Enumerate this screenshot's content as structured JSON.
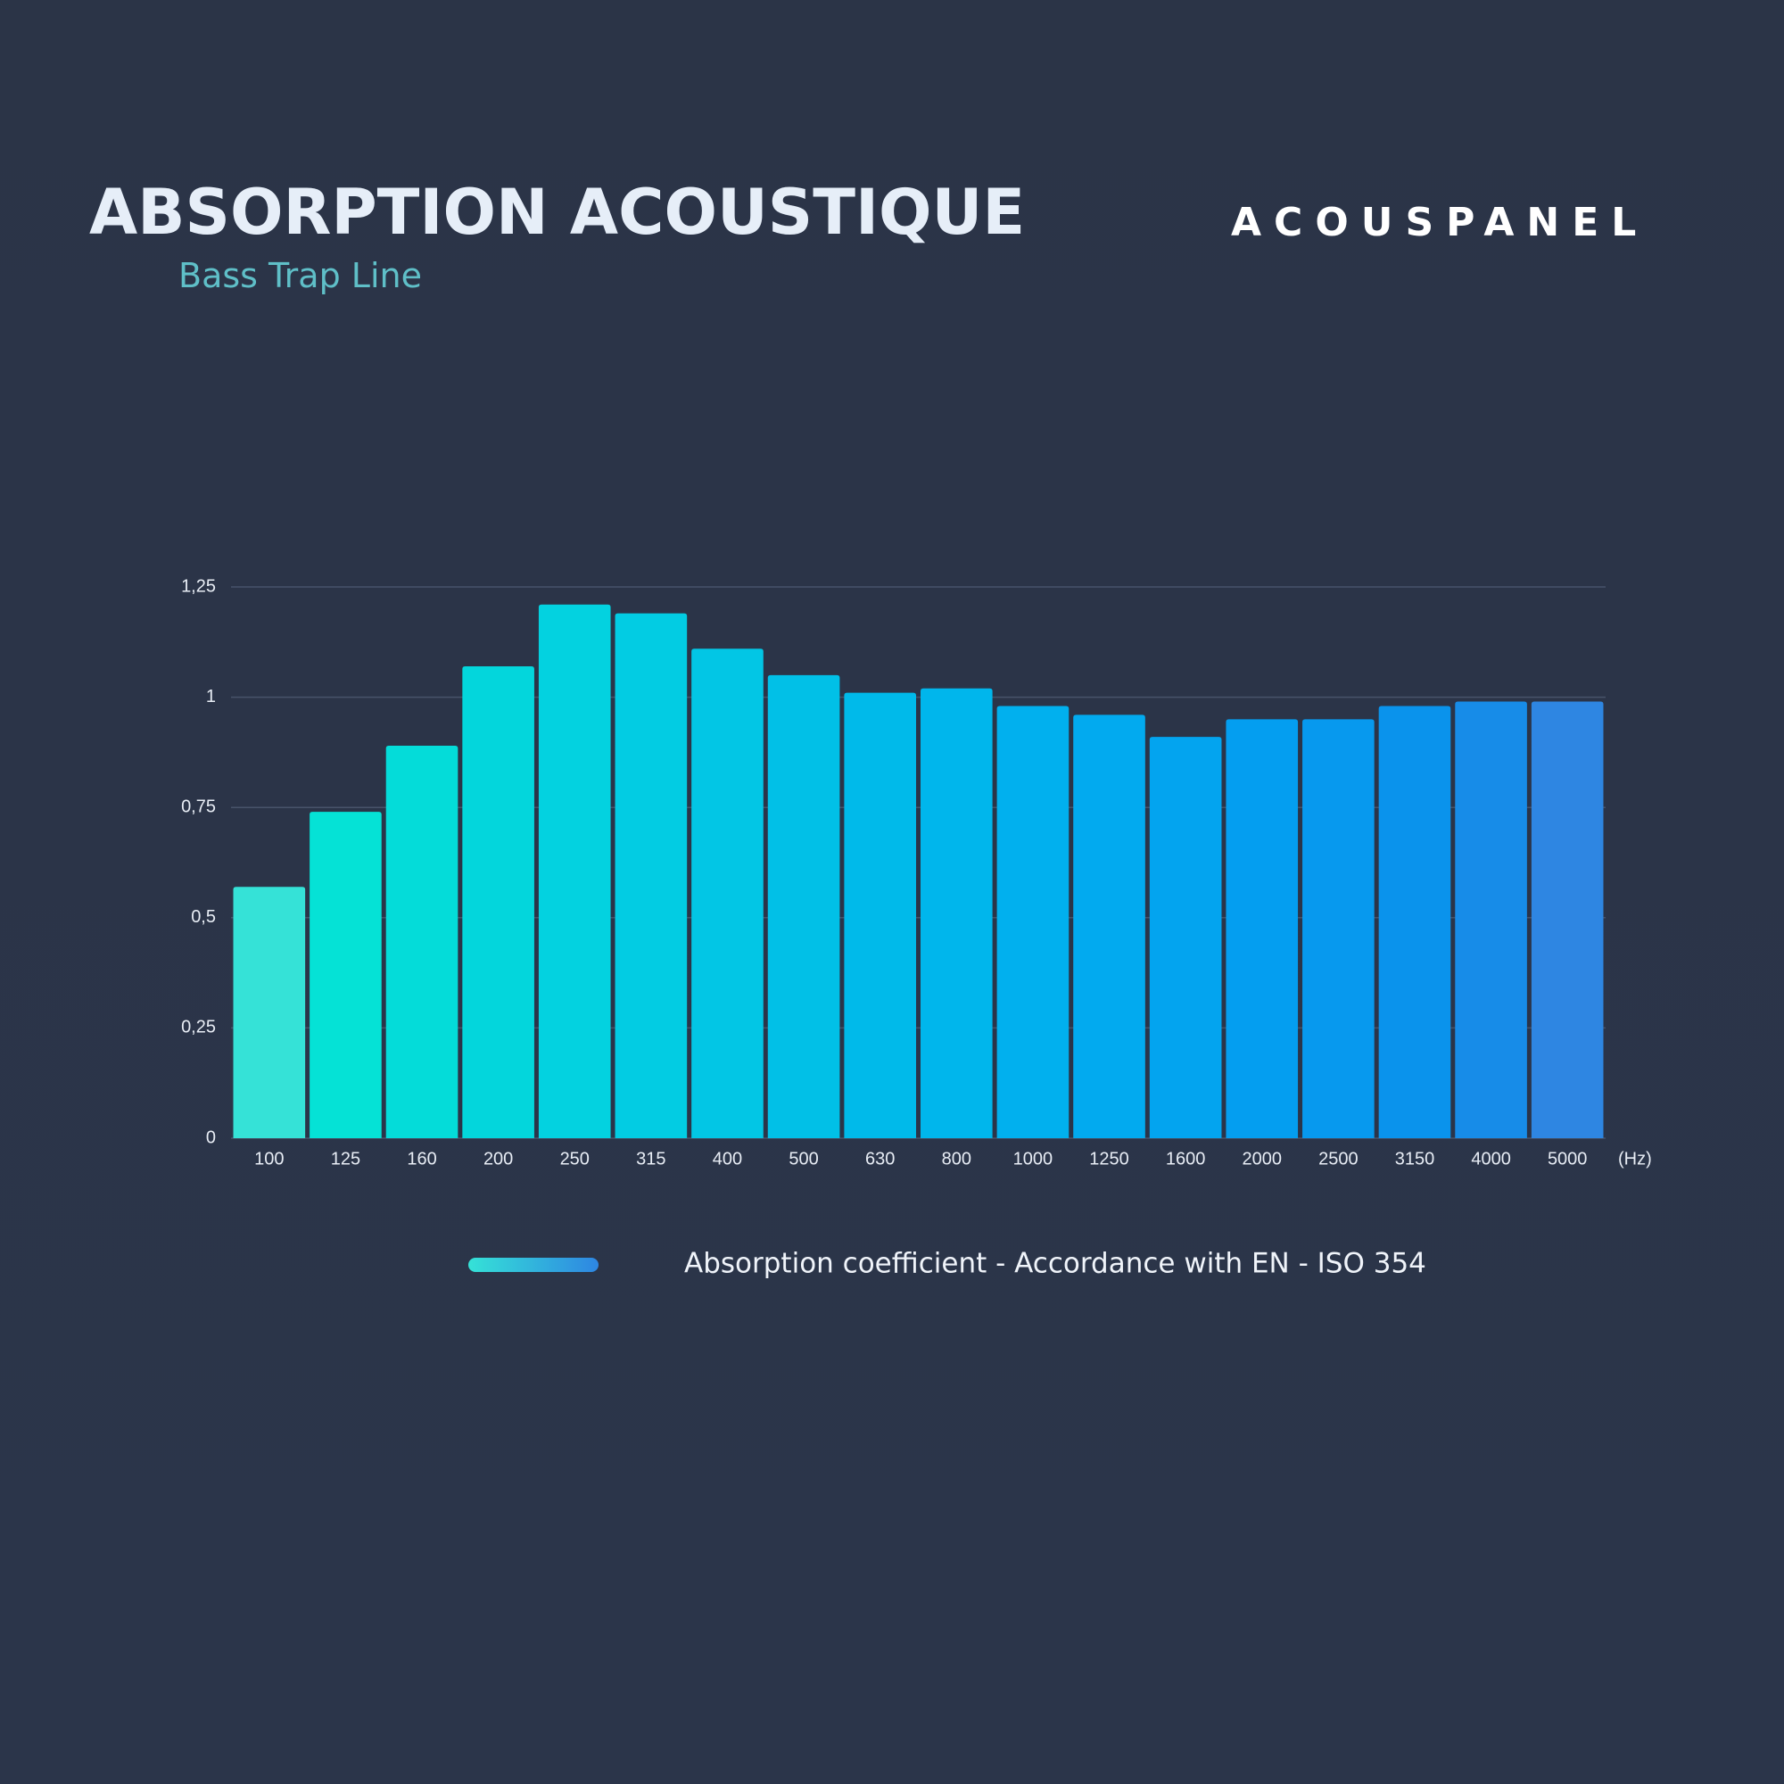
{
  "chart_data": {
    "type": "bar",
    "title": "ABSORPTION ACOUSTIQUE",
    "subtitle": "Bass Trap Line",
    "brand": "ACOUSPANEL",
    "x_unit": "(Hz)",
    "categories": [
      "100",
      "125",
      "160",
      "200",
      "250",
      "315",
      "400",
      "500",
      "630",
      "800",
      "1000",
      "1250",
      "1600",
      "2000",
      "2500",
      "3150",
      "4000",
      "5000"
    ],
    "series": [
      {
        "name": "Absorption coefficient - Accordance with EN - ISO 354",
        "values": [
          0.57,
          0.74,
          0.89,
          1.07,
          1.21,
          1.19,
          1.11,
          1.05,
          1.01,
          1.02,
          0.98,
          0.96,
          0.91,
          0.95,
          0.95,
          0.98,
          0.99,
          0.99
        ],
        "colors": [
          "#35e2d7",
          "#05e2d6",
          "#04dcd9",
          "#03d6dc",
          "#03d2e0",
          "#02cce3",
          "#02c6e5",
          "#01c0e7",
          "#00baea",
          "#00b6ec",
          "#01b0ee",
          "#02aaef",
          "#03a4ef",
          "#049ef0",
          "#0799ee",
          "#0a93ec",
          "#178ce8",
          "#2e86e2"
        ]
      }
    ],
    "ylim": [
      0,
      1.25
    ],
    "yticks": [
      0,
      {
        "value": 0.25,
        "label": "0,25"
      },
      {
        "value": 0.5,
        "label": "0,5"
      },
      {
        "value": 0.75,
        "label": "0,75"
      },
      1,
      {
        "value": 1.25,
        "label": "1,25"
      }
    ],
    "grid": true
  }
}
